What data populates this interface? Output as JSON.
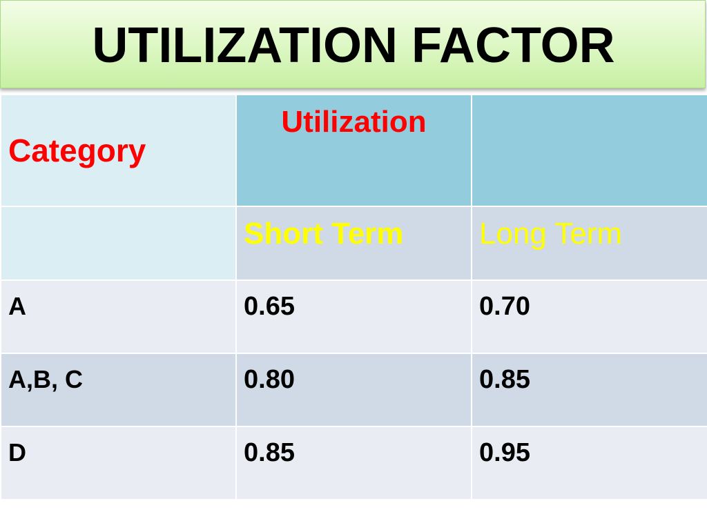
{
  "title": "UTILIZATION FACTOR",
  "colors": {
    "title_banner": "#dcf7c2",
    "header_dark": "#92ccdd",
    "header_light": "#daeef4",
    "row_light": "#e9ecf2",
    "row_dark": "#d0d9e6",
    "header_text_red": "#ff0000",
    "subheader_text_yellow": "#ffff00"
  },
  "table": {
    "header": {
      "category": "Category",
      "utilization": "Utilization",
      "short_term": "Short Term",
      "long_term": "Long Term"
    },
    "rows": [
      {
        "category": "A",
        "short_term": "0.65",
        "long_term": "0.70"
      },
      {
        "category": "A,B, C",
        "short_term": "0.80",
        "long_term": "0.85"
      },
      {
        "category": "D",
        "short_term": "0.85",
        "long_term": "0.95"
      }
    ]
  }
}
